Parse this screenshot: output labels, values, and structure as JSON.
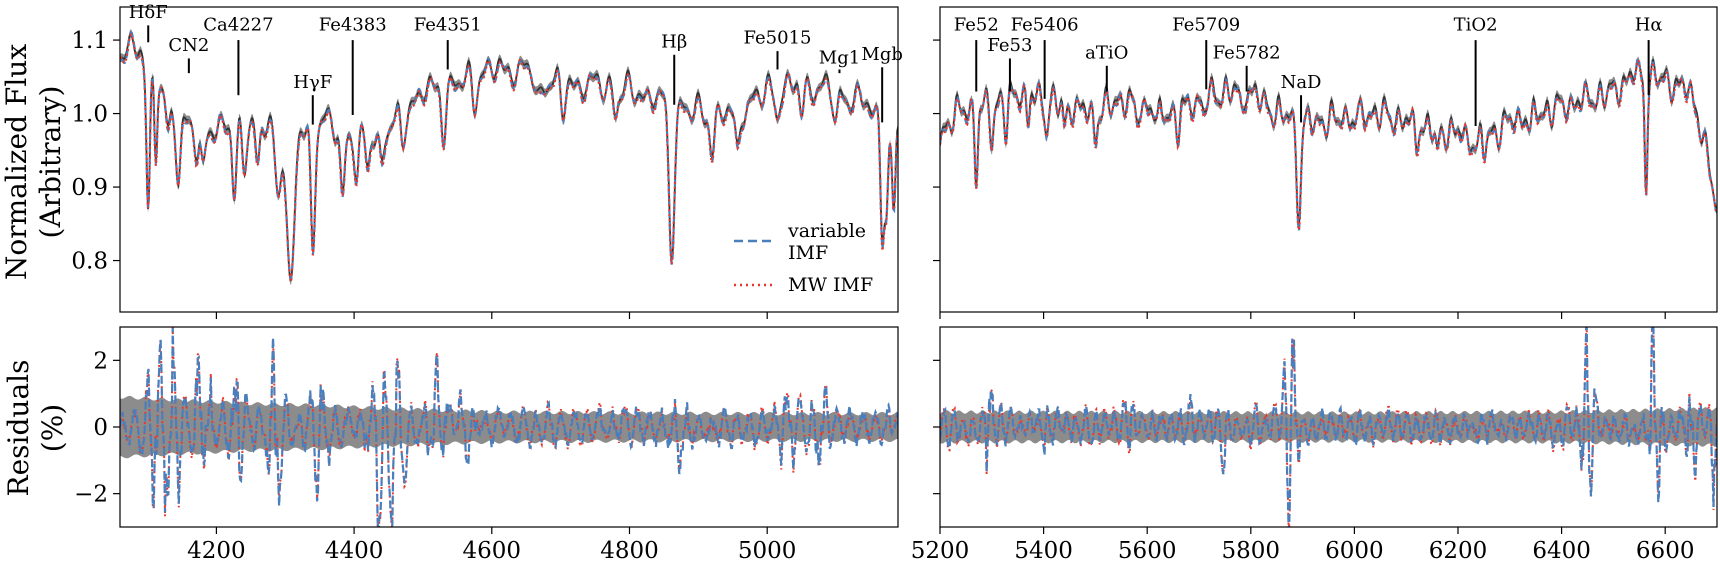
{
  "chart_data": [
    {
      "id": "flux-blue",
      "type": "line",
      "ylabel": [
        "Normalized Flux",
        "(Arbitrary)"
      ],
      "xlim": [
        4060,
        5190
      ],
      "ylim": [
        0.73,
        1.145
      ],
      "yticks": [
        0.8,
        0.9,
        1.0,
        1.1
      ],
      "ytick_labels": [
        "0.8",
        "0.9",
        "1.0",
        "1.1"
      ],
      "xticks": [
        4200,
        4400,
        4600,
        4800,
        5000
      ],
      "legend": {
        "placement": "bottom-right",
        "entries": [
          {
            "label_lines": [
              "variable",
              "IMF"
            ],
            "color": "#4a7fbd",
            "style": "dashed"
          },
          {
            "label_lines": [
              "MW IMF"
            ],
            "color": "#e8372c",
            "style": "dotted"
          }
        ]
      },
      "series": [
        {
          "name": "data",
          "color": "#333333",
          "band_color": "#8c8c8c"
        },
        {
          "name": "variable IMF",
          "color": "#4a7fbd"
        },
        {
          "name": "MW IMF",
          "color": "#e8372c"
        }
      ],
      "continuum": [
        [
          4060,
          1.08
        ],
        [
          4090,
          1.09
        ],
        [
          4120,
          1.03
        ],
        [
          4150,
          0.99
        ],
        [
          4200,
          0.98
        ],
        [
          4260,
          0.99
        ],
        [
          4300,
          0.97
        ],
        [
          4350,
          0.99
        ],
        [
          4400,
          0.97
        ],
        [
          4450,
          0.98
        ],
        [
          4500,
          1.03
        ],
        [
          4550,
          1.04
        ],
        [
          4600,
          1.06
        ],
        [
          4650,
          1.06
        ],
        [
          4700,
          1.04
        ],
        [
          4750,
          1.04
        ],
        [
          4800,
          1.03
        ],
        [
          4850,
          1.02
        ],
        [
          4900,
          1.0
        ],
        [
          4950,
          1.0
        ],
        [
          5000,
          1.03
        ],
        [
          5050,
          1.04
        ],
        [
          5100,
          1.03
        ],
        [
          5150,
          1.01
        ],
        [
          5190,
          0.97
        ]
      ],
      "features": [
        [
          4101,
          0.2,
          2.5
        ],
        [
          4112,
          0.1,
          2
        ],
        [
          4130,
          0.05,
          3
        ],
        [
          4145,
          0.08,
          3
        ],
        [
          4172,
          0.05,
          3
        ],
        [
          4180,
          0.06,
          3
        ],
        [
          4226,
          0.1,
          3
        ],
        [
          4240,
          0.05,
          3
        ],
        [
          4260,
          0.07,
          3
        ],
        [
          4290,
          0.08,
          4
        ],
        [
          4308,
          0.22,
          5
        ],
        [
          4340,
          0.17,
          3
        ],
        [
          4383,
          0.09,
          3
        ],
        [
          4404,
          0.06,
          3
        ],
        [
          4420,
          0.05,
          3
        ],
        [
          4440,
          0.05,
          3
        ],
        [
          4470,
          0.04,
          3
        ],
        [
          4530,
          0.06,
          3
        ],
        [
          4575,
          0.03,
          3
        ],
        [
          4668,
          0.04,
          4
        ],
        [
          4703,
          0.04,
          3
        ],
        [
          4780,
          0.03,
          3
        ],
        [
          4861,
          0.2,
          4
        ],
        [
          4920,
          0.05,
          3
        ],
        [
          4957,
          0.06,
          3
        ],
        [
          5015,
          0.03,
          3
        ],
        [
          5050,
          0.04,
          3
        ],
        [
          5100,
          0.04,
          3
        ],
        [
          5167,
          0.15,
          2.5
        ],
        [
          5173,
          0.12,
          2.5
        ],
        [
          5184,
          0.12,
          2.5
        ]
      ],
      "line_labels": [
        {
          "text": "HδF",
          "x": 4101,
          "y_tick_start": 1.097,
          "y_tick_end": 1.12,
          "y_text": 1.13
        },
        {
          "text": "CN2",
          "x": 4160,
          "y_tick_start": 1.055,
          "y_tick_end": 1.075,
          "y_text": 1.085
        },
        {
          "text": "Ca4227",
          "x": 4232,
          "y_tick_start": 1.025,
          "y_tick_end": 1.1,
          "y_text": 1.113
        },
        {
          "text": "HγF",
          "x": 4340,
          "y_tick_start": 0.985,
          "y_tick_end": 1.025,
          "y_text": 1.035
        },
        {
          "text": "Fe4383",
          "x": 4398,
          "y_tick_start": 0.998,
          "y_tick_end": 1.1,
          "y_text": 1.113
        },
        {
          "text": "Fe4351",
          "x": 4536,
          "y_tick_start": 1.06,
          "y_tick_end": 1.1,
          "y_text": 1.113
        },
        {
          "text": "Hβ",
          "x": 4865,
          "y_tick_start": 1.012,
          "y_tick_end": 1.08,
          "y_text": 1.09
        },
        {
          "text": "Fe5015",
          "x": 5015,
          "y_tick_start": 1.06,
          "y_tick_end": 1.085,
          "y_text": 1.095
        },
        {
          "text": "Mg1",
          "x": 5105,
          "y_tick_start": 1.055,
          "y_tick_end": 1.06,
          "y_text": 1.068
        },
        {
          "text": "Mgb",
          "x": 5167,
          "y_tick_start": 0.988,
          "y_tick_end": 1.063,
          "y_text": 1.073
        }
      ]
    },
    {
      "id": "flux-red",
      "type": "line",
      "xlim": [
        5200,
        6700
      ],
      "ylim": [
        0.73,
        1.145
      ],
      "yticks": [
        0.8,
        0.9,
        1.0,
        1.1
      ],
      "xticks": [
        5200,
        5400,
        5600,
        5800,
        6000,
        6200,
        6400,
        6600
      ],
      "series": [
        {
          "name": "data",
          "color": "#333333",
          "band_color": "#8c8c8c"
        },
        {
          "name": "variable IMF",
          "color": "#4a7fbd"
        },
        {
          "name": "MW IMF",
          "color": "#e8372c"
        }
      ],
      "continuum": [
        [
          5200,
          0.97
        ],
        [
          5230,
          1.0
        ],
        [
          5260,
          1.01
        ],
        [
          5300,
          1.01
        ],
        [
          5350,
          1.03
        ],
        [
          5400,
          1.02
        ],
        [
          5450,
          1.01
        ],
        [
          5500,
          1.0
        ],
        [
          5550,
          1.02
        ],
        [
          5600,
          1.01
        ],
        [
          5650,
          1.0
        ],
        [
          5700,
          1.02
        ],
        [
          5750,
          1.03
        ],
        [
          5800,
          1.03
        ],
        [
          5850,
          1.0
        ],
        [
          5900,
          0.99
        ],
        [
          5950,
          0.99
        ],
        [
          6000,
          1.0
        ],
        [
          6050,
          1.0
        ],
        [
          6100,
          0.99
        ],
        [
          6150,
          0.98
        ],
        [
          6200,
          0.975
        ],
        [
          6230,
          0.96
        ],
        [
          6260,
          0.97
        ],
        [
          6300,
          0.99
        ],
        [
          6350,
          1.0
        ],
        [
          6400,
          1.01
        ],
        [
          6450,
          1.02
        ],
        [
          6500,
          1.03
        ],
        [
          6540,
          1.055
        ],
        [
          6580,
          1.05
        ],
        [
          6620,
          1.04
        ],
        [
          6650,
          1.03
        ],
        [
          6670,
          0.98
        ],
        [
          6700,
          0.87
        ]
      ],
      "features": [
        [
          5270,
          0.1,
          3
        ],
        [
          5300,
          0.04,
          3
        ],
        [
          5328,
          0.05,
          3
        ],
        [
          5370,
          0.04,
          3
        ],
        [
          5406,
          0.04,
          3
        ],
        [
          5440,
          0.03,
          3
        ],
        [
          5500,
          0.03,
          3
        ],
        [
          5580,
          0.03,
          3
        ],
        [
          5620,
          0.025,
          3
        ],
        [
          5660,
          0.03,
          3
        ],
        [
          5709,
          0.025,
          3
        ],
        [
          5782,
          0.025,
          3
        ],
        [
          5893,
          0.13,
          4
        ],
        [
          6000,
          0.02,
          3
        ],
        [
          6120,
          0.025,
          3
        ],
        [
          6160,
          0.04,
          3
        ],
        [
          6250,
          0.02,
          3
        ],
        [
          6340,
          0.02,
          3
        ],
        [
          6563,
          0.15,
          2.5
        ]
      ],
      "line_labels": [
        {
          "text": "Fe52",
          "x": 5270,
          "y_tick_start": 1.03,
          "y_tick_end": 1.1,
          "y_text": 1.113
        },
        {
          "text": "Fe53",
          "x": 5335,
          "y_tick_start": 1.03,
          "y_tick_end": 1.075,
          "y_text": 1.085
        },
        {
          "text": "Fe5406",
          "x": 5402,
          "y_tick_start": 1.02,
          "y_tick_end": 1.1,
          "y_text": 1.113
        },
        {
          "text": "aTiO",
          "x": 5522,
          "y_tick_start": 1.03,
          "y_tick_end": 1.065,
          "y_text": 1.075
        },
        {
          "text": "Fe5709",
          "x": 5714,
          "y_tick_start": 1.033,
          "y_tick_end": 1.1,
          "y_text": 1.113
        },
        {
          "text": "Fe5782",
          "x": 5792,
          "y_tick_start": 1.03,
          "y_tick_end": 1.065,
          "y_text": 1.075
        },
        {
          "text": "NaD",
          "x": 5897,
          "y_tick_start": 0.988,
          "y_tick_end": 1.025,
          "y_text": 1.035
        },
        {
          "text": "TiO2",
          "x": 6234,
          "y_tick_start": 0.983,
          "y_tick_end": 1.1,
          "y_text": 1.113
        },
        {
          "text": "Hα",
          "x": 6568,
          "y_tick_start": 1.025,
          "y_tick_end": 1.1,
          "y_text": 1.113
        }
      ]
    },
    {
      "id": "resid-blue",
      "type": "line",
      "ylabel": [
        "Residuals",
        "(%)"
      ],
      "xlim": [
        4060,
        5190
      ],
      "ylim": [
        -3.0,
        3.0
      ],
      "yticks": [
        -2,
        0,
        2
      ],
      "ytick_labels": [
        "−2",
        "0",
        "2"
      ],
      "xticks": [
        4200,
        4400,
        4600,
        4800,
        5000
      ],
      "xtick_labels": [
        "4200",
        "4400",
        "4600",
        "4800",
        "5000"
      ],
      "band_halfwidth": [
        [
          4060,
          0.9
        ],
        [
          4150,
          0.8
        ],
        [
          4250,
          0.7
        ],
        [
          4350,
          0.65
        ],
        [
          4450,
          0.55
        ],
        [
          4600,
          0.45
        ],
        [
          4800,
          0.42
        ],
        [
          5000,
          0.4
        ],
        [
          5190,
          0.4
        ]
      ],
      "bursts": [
        [
          4110,
          1.8
        ],
        [
          4135,
          2.5
        ],
        [
          4180,
          2.2
        ],
        [
          4230,
          1.6
        ],
        [
          4285,
          2.0
        ],
        [
          4350,
          1.5
        ],
        [
          4435,
          2.3
        ],
        [
          4460,
          1.8
        ],
        [
          4520,
          1.4
        ],
        [
          4560,
          0.9
        ],
        [
          4870,
          0.8
        ],
        [
          5030,
          1.0
        ],
        [
          5080,
          1.1
        ]
      ],
      "base_amp": 0.38
    },
    {
      "id": "resid-red",
      "type": "line",
      "xlim": [
        5200,
        6700
      ],
      "ylim": [
        -3.0,
        3.0
      ],
      "yticks": [
        -2,
        0,
        2
      ],
      "xticks": [
        5200,
        5400,
        5600,
        5800,
        6000,
        6200,
        6400,
        6600
      ],
      "xtick_labels": [
        "5200",
        "5400",
        "5600",
        "5800",
        "6000",
        "6200",
        "6400",
        "6600"
      ],
      "band_halfwidth": [
        [
          5200,
          0.45
        ],
        [
          6000,
          0.42
        ],
        [
          6400,
          0.45
        ],
        [
          6700,
          0.55
        ]
      ],
      "bursts": [
        [
          5295,
          1.3
        ],
        [
          5410,
          0.9
        ],
        [
          5560,
          0.7
        ],
        [
          5680,
          0.7
        ],
        [
          5750,
          0.9
        ],
        [
          5878,
          2.5
        ],
        [
          6450,
          2.0
        ],
        [
          6580,
          2.7
        ],
        [
          6650,
          1.1
        ],
        [
          6700,
          1.8
        ]
      ],
      "base_amp": 0.35
    }
  ]
}
